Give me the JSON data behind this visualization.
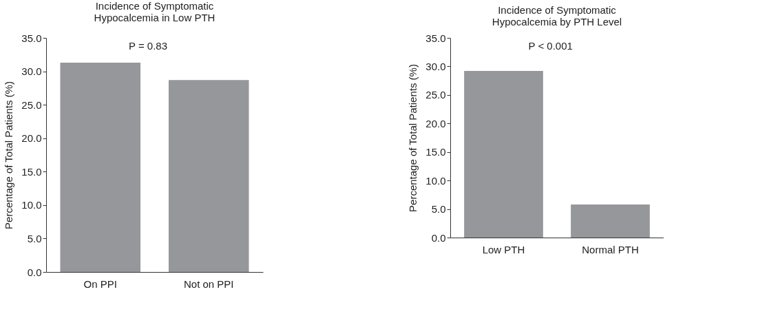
{
  "chart_data": [
    {
      "type": "bar",
      "title": [
        "Incidence of Symptomatic",
        "Hypocalcemia in Low PTH"
      ],
      "ylabel": "Percentage of Total Patients (%)",
      "categories": [
        "On PPI",
        "Not on PPI"
      ],
      "values": [
        31.3,
        28.7
      ],
      "color": "#96979b",
      "ylim": [
        0,
        35
      ],
      "yticks": [
        {
          "value": 0,
          "label": "0.0"
        },
        {
          "value": 5,
          "label": "5.0"
        },
        {
          "value": 10,
          "label": "10.0"
        },
        {
          "value": 15,
          "label": "15.0"
        },
        {
          "value": 20,
          "label": "20.0"
        },
        {
          "value": 25,
          "label": "25.0"
        },
        {
          "value": 30,
          "label": "30.0"
        },
        {
          "value": 35,
          "label": "35.0"
        }
      ],
      "grid": false,
      "annotations": [
        "P = 0.83"
      ]
    },
    {
      "type": "bar",
      "title": [
        "Incidence of Symptomatic",
        "Hypocalcemia by PTH Level"
      ],
      "ylabel": "Percentage of Total Patients (%)",
      "categories": [
        "Low PTH",
        "Normal PTH"
      ],
      "values": [
        29.2,
        5.8
      ],
      "color": "#96979b",
      "ylim": [
        0,
        35
      ],
      "yticks": [
        {
          "value": 0,
          "label": "0.0"
        },
        {
          "value": 5,
          "label": "5.0"
        },
        {
          "value": 10,
          "label": "10.0"
        },
        {
          "value": 15,
          "label": "15.0"
        },
        {
          "value": 20,
          "label": "20.0"
        },
        {
          "value": 25,
          "label": "25.0"
        },
        {
          "value": 30,
          "label": "30.0"
        },
        {
          "value": 35,
          "label": "35.0"
        }
      ],
      "grid": false,
      "annotations": [
        "P < 0.001"
      ]
    }
  ]
}
